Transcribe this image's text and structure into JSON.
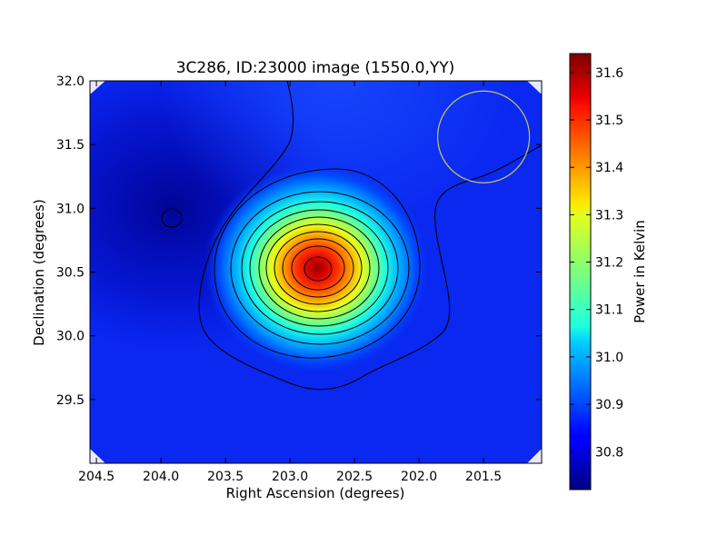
{
  "chart_data": {
    "type": "heatmap",
    "title": "3C286, ID:23000 image (1550.0,YY)",
    "xlabel": "Right Ascension (degrees)",
    "ylabel": "Declination (degrees)",
    "xlim": [
      204.55,
      201.05
    ],
    "ylim": [
      29.0,
      32.0
    ],
    "x_ticks": [
      "204.5",
      "204.0",
      "203.5",
      "203.0",
      "202.5",
      "202.0",
      "201.5"
    ],
    "x_tick_values": [
      204.5,
      204.0,
      203.5,
      203.0,
      202.5,
      202.0,
      201.5
    ],
    "y_ticks": [
      "29.5",
      "30.0",
      "30.5",
      "31.0",
      "31.5",
      "32.0"
    ],
    "y_tick_values": [
      29.5,
      30.0,
      30.5,
      31.0,
      31.5,
      32.0
    ],
    "colorbar": {
      "label": "Power in Kelvin",
      "range": [
        30.72,
        31.64
      ],
      "ticks": [
        "30.8",
        "30.9",
        "31.0",
        "31.1",
        "31.2",
        "31.3",
        "31.4",
        "31.5",
        "31.6"
      ],
      "tick_values": [
        30.8,
        30.9,
        31.0,
        31.1,
        31.2,
        31.3,
        31.4,
        31.5,
        31.6
      ],
      "colormap": "jet"
    },
    "peak": {
      "ra": 202.77,
      "dec": 30.53,
      "value": 31.63
    },
    "background_level": 30.79,
    "beam": {
      "ra": 201.5,
      "dec": 31.56,
      "radius_deg": 0.36,
      "color": "#c8c860"
    }
  }
}
